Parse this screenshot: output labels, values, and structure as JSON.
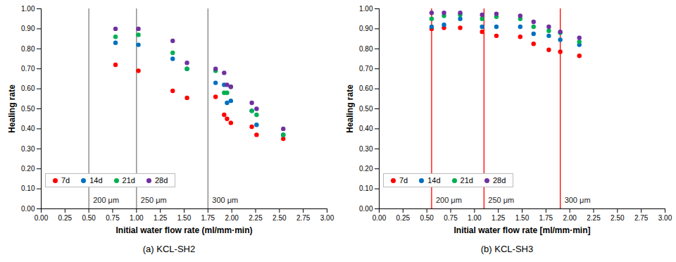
{
  "chart_data": [
    {
      "type": "scatter",
      "title": "(a) KCL-SH2",
      "x_label": "Initial water flow rate (ml/mm·min)",
      "y_label": "Healing rate",
      "xlim": [
        0,
        3
      ],
      "ylim": [
        0,
        1
      ],
      "xticks": [
        {
          "value": 0,
          "label": "0.00"
        },
        {
          "value": 0.25,
          "label": "0.25"
        },
        {
          "value": 0.5,
          "label": "0.50"
        },
        {
          "value": 0.75,
          "label": "0.75"
        },
        {
          "value": 1,
          "label": "1.00"
        },
        {
          "value": 1.25,
          "label": "1.25"
        },
        {
          "value": 1.5,
          "label": "1.50"
        },
        {
          "value": 1.75,
          "label": "1.75"
        },
        {
          "value": 2,
          "label": "2.00"
        },
        {
          "value": 2.25,
          "label": "2.25"
        },
        {
          "value": 2.5,
          "label": "2.50"
        },
        {
          "value": 2.75,
          "label": "2.75"
        },
        {
          "value": 3,
          "label": "3.00"
        }
      ],
      "yticks": [
        {
          "value": 0,
          "label": "0.00"
        },
        {
          "value": 0.1,
          "label": "0.10"
        },
        {
          "value": 0.2,
          "label": "0.20"
        },
        {
          "value": 0.3,
          "label": "0.30"
        },
        {
          "value": 0.4,
          "label": "0.40"
        },
        {
          "value": 0.5,
          "label": "0.50"
        },
        {
          "value": 0.6,
          "label": "0.60"
        },
        {
          "value": 0.7,
          "label": "0.70"
        },
        {
          "value": 0.8,
          "label": "0.80"
        },
        {
          "value": 0.9,
          "label": "0.90"
        },
        {
          "value": 1,
          "label": "1.00"
        }
      ],
      "grid": false,
      "legend": "lower left",
      "marker": "circle",
      "x": [
        0.78,
        1.02,
        1.38,
        1.53,
        1.83,
        1.92,
        1.95,
        1.99,
        2.21,
        2.26,
        2.54
      ],
      "series": [
        {
          "name": "7d",
          "color": "#ff0000",
          "values": [
            0.72,
            0.69,
            0.59,
            0.555,
            0.56,
            0.47,
            0.45,
            0.43,
            0.41,
            0.37,
            0.35
          ]
        },
        {
          "name": "14d",
          "color": "#0070c0",
          "values": [
            0.83,
            0.82,
            0.75,
            0.7,
            0.63,
            0.62,
            0.53,
            0.54,
            0.49,
            0.42,
            0.37
          ]
        },
        {
          "name": "21d",
          "color": "#00b050",
          "values": [
            0.86,
            0.87,
            0.78,
            0.7,
            0.69,
            0.58,
            0.58,
            0.61,
            0.49,
            0.47,
            0.37
          ]
        },
        {
          "name": "28d",
          "color": "#7030a0",
          "values": [
            0.9,
            0.9,
            0.84,
            0.73,
            0.7,
            0.68,
            0.62,
            0.61,
            0.53,
            0.5,
            0.4
          ]
        }
      ],
      "reference_lines": [
        {
          "x": 0.5,
          "label": "200 μm",
          "color": "#808080",
          "line_style": "dashed"
        },
        {
          "x": 1.0,
          "label": "250 μm",
          "color": "#808080",
          "line_style": "dashed"
        },
        {
          "x": 1.75,
          "label": "300 μm",
          "color": "#808080",
          "line_style": "dashed"
        }
      ]
    },
    {
      "type": "scatter",
      "title": "(b) KCL-SH3",
      "x_label": "Initial water flow rate [ml/mm·min]",
      "y_label": "Healing rate",
      "xlim": [
        0,
        3
      ],
      "ylim": [
        0,
        1
      ],
      "xticks": [
        {
          "value": 0,
          "label": "0.00"
        },
        {
          "value": 0.25,
          "label": "0.25"
        },
        {
          "value": 0.5,
          "label": "0.50"
        },
        {
          "value": 0.75,
          "label": "0.75"
        },
        {
          "value": 1,
          "label": "1.00"
        },
        {
          "value": 1.25,
          "label": "1.25"
        },
        {
          "value": 1.5,
          "label": "1.50"
        },
        {
          "value": 1.75,
          "label": "1.75"
        },
        {
          "value": 2,
          "label": "2.00"
        },
        {
          "value": 2.25,
          "label": "2.25"
        },
        {
          "value": 2.5,
          "label": "2.50"
        },
        {
          "value": 2.75,
          "label": "2.75"
        },
        {
          "value": 3,
          "label": "3.00"
        }
      ],
      "yticks": [
        {
          "value": 0,
          "label": "0.00"
        },
        {
          "value": 0.1,
          "label": "0.10"
        },
        {
          "value": 0.2,
          "label": "0.20"
        },
        {
          "value": 0.3,
          "label": "0.30"
        },
        {
          "value": 0.4,
          "label": "0.40"
        },
        {
          "value": 0.5,
          "label": "0.50"
        },
        {
          "value": 0.6,
          "label": "0.60"
        },
        {
          "value": 0.7,
          "label": "0.70"
        },
        {
          "value": 0.8,
          "label": "0.80"
        },
        {
          "value": 0.9,
          "label": "0.90"
        },
        {
          "value": 1,
          "label": "1.00"
        }
      ],
      "grid": false,
      "legend": "lower left",
      "marker": "circle",
      "x": [
        0.55,
        0.68,
        0.85,
        1.08,
        1.23,
        1.48,
        1.62,
        1.78,
        1.9,
        2.1
      ],
      "series": [
        {
          "name": "7d",
          "color": "#ff0000",
          "values": [
            0.9,
            0.905,
            0.905,
            0.885,
            0.865,
            0.86,
            0.825,
            0.795,
            0.785,
            0.765
          ]
        },
        {
          "name": "14d",
          "color": "#0070c0",
          "values": [
            0.91,
            0.92,
            0.95,
            0.91,
            0.91,
            0.91,
            0.875,
            0.865,
            0.845,
            0.82
          ]
        },
        {
          "name": "21d",
          "color": "#00b050",
          "values": [
            0.95,
            0.965,
            0.97,
            0.95,
            0.96,
            0.95,
            0.91,
            0.89,
            0.88,
            0.835
          ]
        },
        {
          "name": "28d",
          "color": "#7030a0",
          "values": [
            0.98,
            0.98,
            0.98,
            0.97,
            0.975,
            0.965,
            0.935,
            0.91,
            0.885,
            0.855
          ]
        }
      ],
      "reference_lines": [
        {
          "x": 0.55,
          "label": "200 μm",
          "color": "#ff0000",
          "line_style": "dashed"
        },
        {
          "x": 1.1,
          "label": "250 μm",
          "color": "#ff0000",
          "line_style": "dashed"
        },
        {
          "x": 1.9,
          "label": "300 μm",
          "color": "#ff0000",
          "line_style": "dashed"
        }
      ]
    }
  ]
}
